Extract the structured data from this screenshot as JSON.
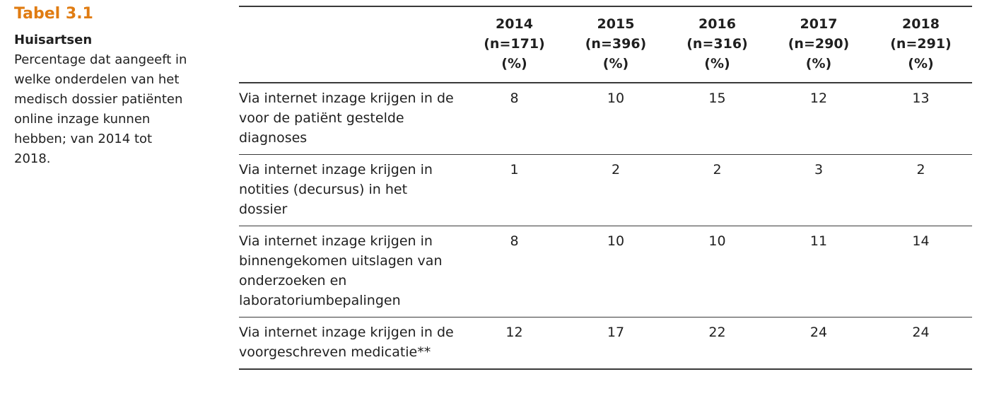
{
  "caption": {
    "table_number": "Tabel 3.1",
    "title": "Huisartsen",
    "description": "Percentage dat aangeeft in welke onderdelen van het medisch dossier patiënten online inzage kunnen hebben; van 2014 tot 2018."
  },
  "table": {
    "label_header": "",
    "columns": [
      {
        "year": "2014",
        "n": "(n=171)",
        "unit": "(%)"
      },
      {
        "year": "2015",
        "n": "(n=396)",
        "unit": "(%)"
      },
      {
        "year": "2016",
        "n": "(n=316)",
        "unit": "(%)"
      },
      {
        "year": "2017",
        "n": "(n=290)",
        "unit": "(%)"
      },
      {
        "year": "2018",
        "n": "(n=291)",
        "unit": "(%)"
      }
    ],
    "rows": [
      {
        "label": "Via internet inzage krijgen in de voor de patiënt gestelde diagnoses",
        "values": [
          "8",
          "10",
          "15",
          "12",
          "13"
        ]
      },
      {
        "label": "Via internet inzage krijgen in notities (decursus) in het dossier",
        "values": [
          "1",
          "2",
          "2",
          "3",
          "2"
        ]
      },
      {
        "label": "Via internet inzage krijgen in binnengekomen uitslagen van onderzoeken en laboratoriumbepalingen",
        "values": [
          "8",
          "10",
          "10",
          "11",
          "14"
        ]
      },
      {
        "label": "Via internet inzage krijgen in de voorgeschreven medicatie**",
        "values": [
          "12",
          "17",
          "22",
          "24",
          "24"
        ]
      }
    ]
  },
  "colors": {
    "accent": "#e07c12",
    "text": "#1f1f1f",
    "rule": "#3a3a3a"
  }
}
